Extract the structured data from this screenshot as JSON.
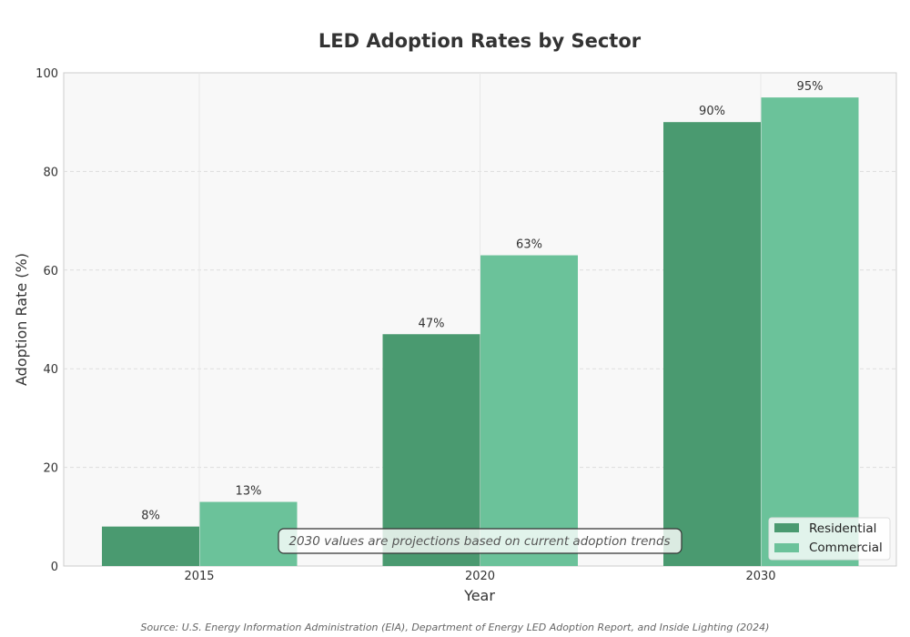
{
  "chart_data": {
    "type": "bar",
    "title": "LED Adoption Rates by Sector",
    "xlabel": "Year",
    "ylabel": "Adoption Rate (%)",
    "categories": [
      "2015",
      "2020",
      "2030"
    ],
    "series": [
      {
        "name": "Residential",
        "values": [
          8,
          47,
          90
        ],
        "labels": [
          "8%",
          "47%",
          "90%"
        ],
        "color": "#4a9a70"
      },
      {
        "name": "Commercial",
        "values": [
          13,
          63,
          95
        ],
        "labels": [
          "13%",
          "63%",
          "95%"
        ],
        "color": "#6bc29a"
      }
    ],
    "ylim": [
      0,
      100
    ],
    "yticks": [
      0,
      20,
      40,
      60,
      80,
      100
    ],
    "grid": true,
    "legend_position": "bottom-right",
    "annotation": "2030 values are projections based on current adoption trends",
    "source": "Source: U.S. Energy Information Administration (EIA), Department of Energy LED Adoption Report, and Inside Lighting (2024)"
  }
}
